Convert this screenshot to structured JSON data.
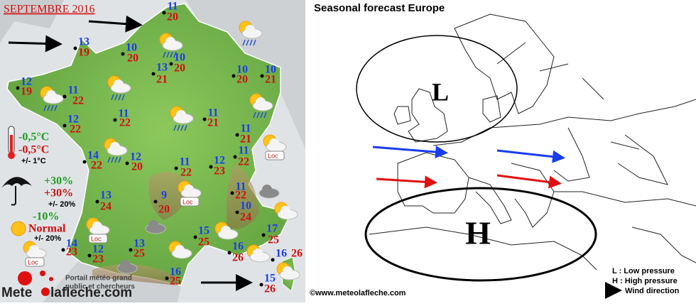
{
  "france": {
    "title": "SEPTEMBRE 2016",
    "cities": [
      {
        "min": 11,
        "max": 20
      },
      {
        "min": 13,
        "max": 19
      },
      {
        "min": 10,
        "max": 20
      },
      {
        "min": 10,
        "max": 20
      },
      {
        "min": 13,
        "max": 21
      },
      {
        "min": 10,
        "max": 20
      },
      {
        "min": 10,
        "max": 21
      },
      {
        "min": 12,
        "max": 19
      },
      {
        "min": 11,
        "max": 22
      },
      {
        "min": 12,
        "max": 22
      },
      {
        "min": 11,
        "max": 22
      },
      {
        "min": 11,
        "max": 21
      },
      {
        "min": 11,
        "max": 21
      },
      {
        "min": 14,
        "max": 22
      },
      {
        "min": 12,
        "max": 20
      },
      {
        "min": 11,
        "max": 22
      },
      {
        "min": 12,
        "max": 23
      },
      {
        "min": 11,
        "max": 22
      },
      {
        "min": 11,
        "max": 22
      },
      {
        "min": 9,
        "max": 20
      },
      {
        "min": 13,
        "max": 24
      },
      {
        "min": 10,
        "max": 24
      },
      {
        "min": 15,
        "max": 25
      },
      {
        "min": 17,
        "max": 25
      },
      {
        "min": 14,
        "max": 23
      },
      {
        "min": 12,
        "max": 23
      },
      {
        "min": 13,
        "max": 25
      },
      {
        "min": 16,
        "max": 26
      },
      {
        "min": 16,
        "max": 26
      },
      {
        "min": 16,
        "max": 25
      },
      {
        "min": 15,
        "max": 26
      }
    ],
    "loc_label": "Loc",
    "legend": {
      "temperature": {
        "min": "-0,5°C",
        "max": "-0,5°C",
        "range": "+/- 1°C"
      },
      "rain": {
        "min": "+30%",
        "max": "+30%",
        "range": "+/- 20%"
      },
      "sun": {
        "min": "-10%",
        "max": "Normal",
        "range": "+/- 20%"
      }
    },
    "portal": [
      "Portail météo grand",
      "public et chercheurs"
    ],
    "logo": {
      "part1": "Mete",
      "part2": "lafleche.com"
    }
  },
  "europe": {
    "title": "Seasonal  forecast Europe",
    "low": "L",
    "high": "H",
    "legend": [
      "L : Low pressure",
      "H : High pressure",
      "Wind direction"
    ],
    "copyright": "©www.meteolafleche.com"
  }
}
